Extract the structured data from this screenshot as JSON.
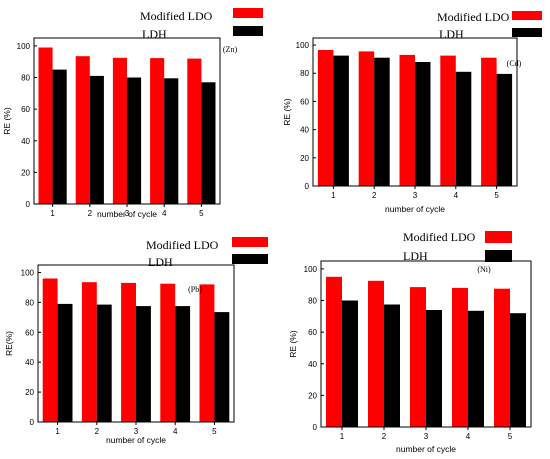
{
  "colors": {
    "modified_ldo": "#ff0000",
    "ldh": "#000000",
    "axis": "#000000",
    "background": "#ffffff"
  },
  "chart_data": [
    {
      "type": "bar",
      "panel_label": "(Zn)",
      "xlabel": "number of cycle",
      "ylabel": "RE (%)",
      "categories": [
        "1",
        "2",
        "3",
        "4",
        "5"
      ],
      "ylim": [
        0,
        105
      ],
      "yticks": [
        0,
        20,
        40,
        60,
        80,
        100
      ],
      "grid": false,
      "legend_position": "top-right, above plot",
      "series": [
        {
          "name": "Modified LDO",
          "color": "#ff0000",
          "values": [
            99,
            93.5,
            92.5,
            92.3,
            92
          ]
        },
        {
          "name": "LDH",
          "color": "#000000",
          "values": [
            85,
            81,
            80,
            79.5,
            77
          ]
        }
      ]
    },
    {
      "type": "bar",
      "panel_label": "(Cd)",
      "xlabel": "number of cycle",
      "ylabel": "RE (%)",
      "categories": [
        "1",
        "2",
        "3",
        "4",
        "5"
      ],
      "ylim": [
        0,
        105
      ],
      "yticks": [
        0,
        20,
        40,
        60,
        80,
        100
      ],
      "grid": false,
      "legend_position": "top-right, above plot",
      "series": [
        {
          "name": "Modified LDO",
          "color": "#ff0000",
          "values": [
            96.5,
            95.5,
            93,
            92.5,
            91
          ]
        },
        {
          "name": "LDH",
          "color": "#000000",
          "values": [
            92.5,
            91,
            88,
            81,
            79.5
          ]
        }
      ]
    },
    {
      "type": "bar",
      "panel_label": "(Pb)",
      "xlabel": "number of cycle",
      "ylabel": "RE(%)",
      "categories": [
        "1",
        "2",
        "3",
        "4",
        "5"
      ],
      "ylim": [
        0,
        105
      ],
      "yticks": [
        0,
        20,
        40,
        60,
        80,
        100
      ],
      "grid": false,
      "legend_position": "top-right, above plot",
      "series": [
        {
          "name": "Modified LDO",
          "color": "#ff0000",
          "values": [
            96,
            93.5,
            93,
            92.5,
            92
          ]
        },
        {
          "name": "LDH",
          "color": "#000000",
          "values": [
            79,
            78.5,
            77.5,
            77.5,
            73.5
          ]
        }
      ]
    },
    {
      "type": "bar",
      "panel_label": "(Ni)",
      "xlabel": "number of cycle",
      "ylabel": "RE (%)",
      "categories": [
        "1",
        "2",
        "3",
        "4",
        "5"
      ],
      "ylim": [
        0,
        105
      ],
      "yticks": [
        0,
        20,
        40,
        60,
        80,
        100
      ],
      "grid": false,
      "legend_position": "top-right, above plot",
      "series": [
        {
          "name": "Modified LDO",
          "color": "#ff0000",
          "values": [
            95,
            92.5,
            88.5,
            88,
            87.5
          ]
        },
        {
          "name": "LDH",
          "color": "#000000",
          "values": [
            80,
            77.5,
            74,
            73.5,
            72
          ]
        }
      ]
    }
  ]
}
